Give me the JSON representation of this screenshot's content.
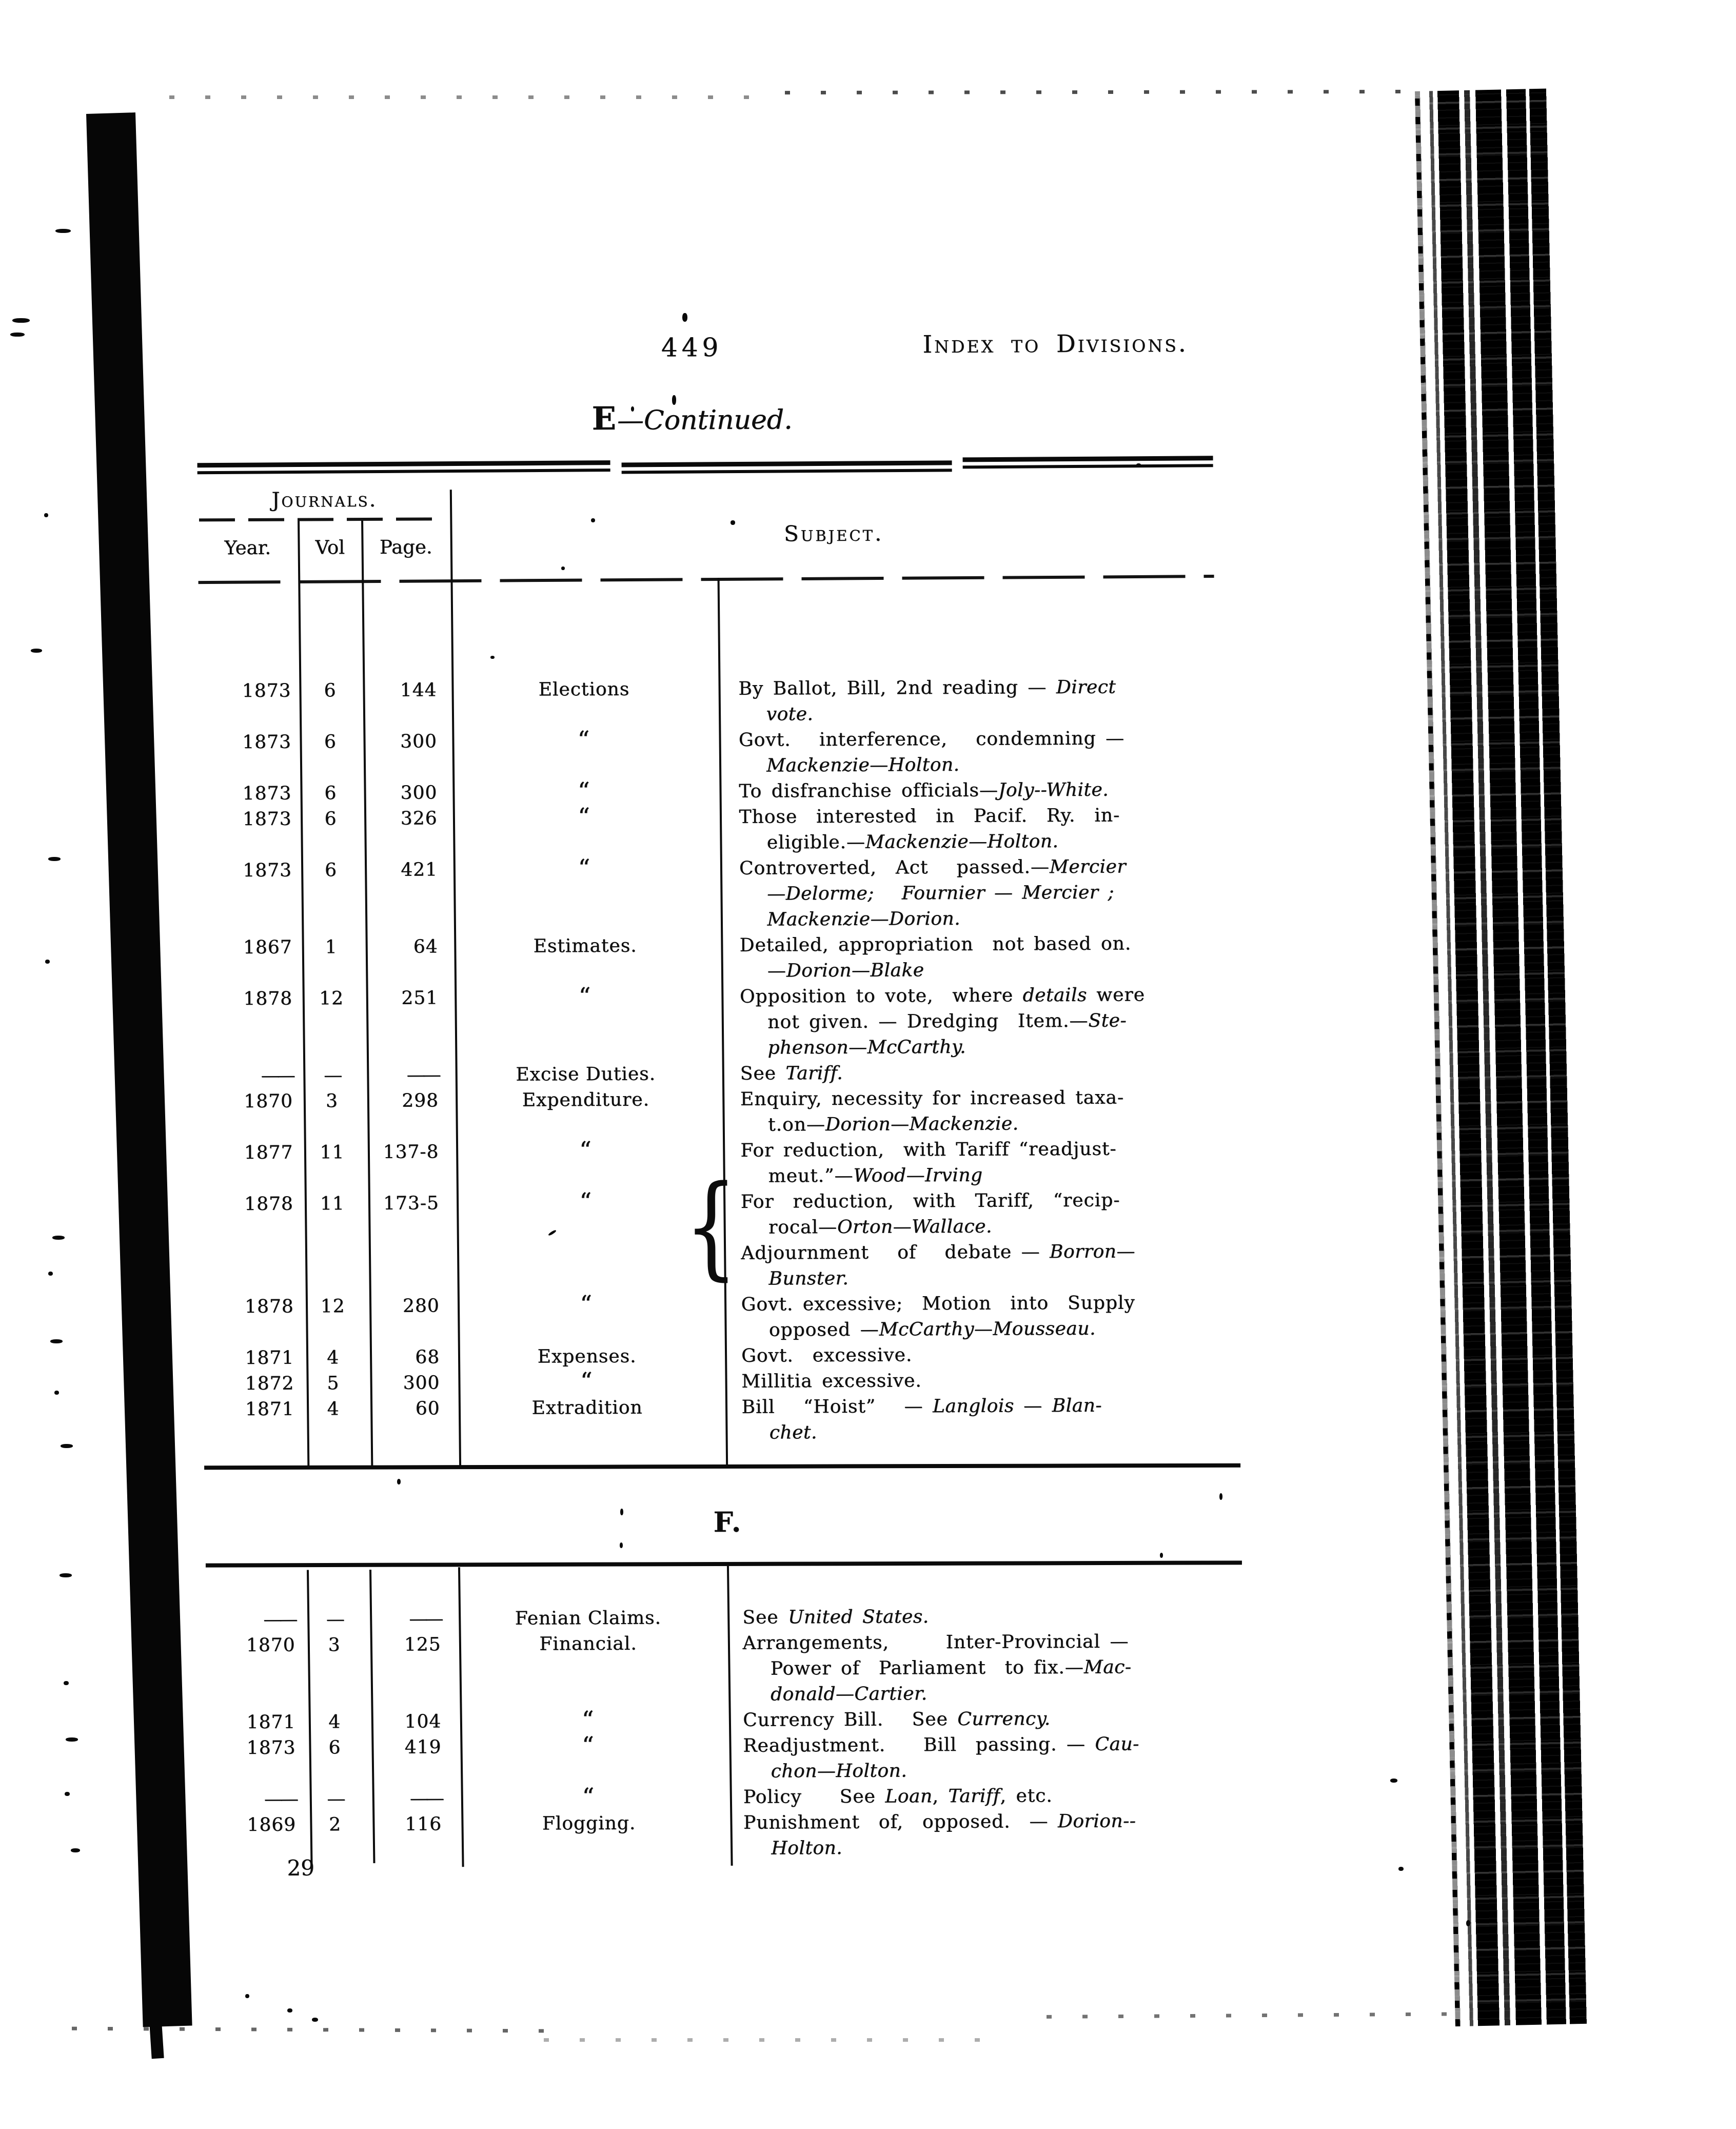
{
  "colors": {
    "ink": "#0d0d0d",
    "paper": "#ffffff"
  },
  "header": {
    "page_number": "449",
    "title": "Index to Divisions."
  },
  "section_e": {
    "letter": "E",
    "continued": "—Continued."
  },
  "table_header": {
    "group": "Journals.",
    "year": "Year.",
    "vol": "Vol",
    "page": "Page.",
    "subject": "Subject."
  },
  "section_f": {
    "heading": "F."
  },
  "footer": {
    "signature": "29"
  },
  "symbols": {
    "ditto": "“",
    "brace": "{",
    "no_entry_long": "——",
    "no_entry_short": "—"
  },
  "entries_e": [
    {
      "year": "1873",
      "vol": "6",
      "page": "144",
      "topic": "Elections",
      "lines": [
        {
          "ind": 0,
          "seg": [
            "By Ballot, Bill, 2nd reading — ",
            {
              "i": "Direct"
            }
          ]
        },
        {
          "ind": 1,
          "seg": [
            {
              "i": "vote."
            }
          ]
        }
      ]
    },
    {
      "year": "1873",
      "vol": "6",
      "page": "300",
      "topic": "“",
      "lines": [
        {
          "ind": 0,
          "seg": [
            "Govt.   interference,   condemning — "
          ]
        },
        {
          "ind": 1,
          "seg": [
            {
              "i": "Mackenzie—Holton."
            }
          ]
        }
      ]
    },
    {
      "year": "1873",
      "vol": "6",
      "page": "300",
      "topic": "“",
      "lines": [
        {
          "ind": 0,
          "seg": [
            "To disfranchise officials—",
            {
              "i": "Joly--White."
            }
          ]
        }
      ]
    },
    {
      "year": "1873",
      "vol": "6",
      "page": "326",
      "topic": "“",
      "lines": [
        {
          "ind": 0,
          "seg": [
            "Those  interested  in  Pacif.  Ry.  in-"
          ]
        },
        {
          "ind": 1,
          "seg": [
            "eligible.—",
            {
              "i": "Mackenzie—Holton."
            }
          ]
        }
      ]
    },
    {
      "year": "1873",
      "vol": "6",
      "page": "421",
      "topic": "“",
      "lines": [
        {
          "ind": 0,
          "seg": [
            "Controverted,  Act   passed.—",
            {
              "i": "Mercier"
            }
          ]
        },
        {
          "ind": 1,
          "seg": [
            {
              "i": "—Delorme;   Fournier — Mercier ;"
            }
          ]
        },
        {
          "ind": 1,
          "seg": [
            {
              "i": "Mackenzie—Dorion."
            }
          ]
        }
      ]
    },
    {
      "year": "1867",
      "vol": "1",
      "page": "64",
      "topic": "Estimates.",
      "lines": [
        {
          "ind": 0,
          "seg": [
            "Detailed, appropriation  not based on."
          ]
        },
        {
          "ind": 1,
          "seg": [
            "—",
            {
              "i": "Dorion—Blake"
            }
          ]
        }
      ]
    },
    {
      "year": "1878",
      "vol": "12",
      "page": "251",
      "topic": "“",
      "lines": [
        {
          "ind": 0,
          "seg": [
            "Opposition to vote,  where ",
            {
              "i": "details"
            },
            " were"
          ]
        },
        {
          "ind": 1,
          "seg": [
            "not given. — Dredging  Item.—",
            {
              "i": "Ste-"
            }
          ]
        },
        {
          "ind": 1,
          "seg": [
            {
              "i": "phenson—McCarthy."
            }
          ]
        }
      ]
    },
    {
      "year": "——",
      "vol": "—",
      "page": "——",
      "topic": "Excise Duties.",
      "lines": [
        {
          "ind": 0,
          "seg": [
            "See ",
            {
              "i": "Tariff."
            }
          ]
        }
      ]
    },
    {
      "year": "1870",
      "vol": "3",
      "page": "298",
      "topic": "Expenditure.",
      "lines": [
        {
          "ind": 0,
          "seg": [
            "Enquiry, necessity for increased taxa-"
          ]
        },
        {
          "ind": 1,
          "seg": [
            "t.on—",
            {
              "i": "Dorion—Mackenzie."
            }
          ]
        }
      ]
    },
    {
      "year": "1877",
      "vol": "11",
      "page": "137-8",
      "topic": "“",
      "lines": [
        {
          "ind": 0,
          "seg": [
            "For reduction,  with Tariff “readjust-"
          ]
        },
        {
          "ind": 1,
          "seg": [
            "meut.”—",
            {
              "i": "Wood—Irving"
            }
          ]
        }
      ]
    },
    {
      "year": "1878",
      "vol": "11",
      "page": "173-5",
      "topic": "“",
      "brace": true,
      "lines": [
        {
          "ind": 0,
          "seg": [
            "For  reduction,  with  Tariff,  “recip-"
          ]
        },
        {
          "ind": 1,
          "seg": [
            "rocal—",
            {
              "i": "Orton—Wallace."
            }
          ]
        },
        {
          "ind": 0,
          "seg": [
            "Adjournment   of   debate — ",
            {
              "i": "Borron—"
            }
          ]
        },
        {
          "ind": 1,
          "seg": [
            {
              "i": "Bunster."
            }
          ]
        }
      ]
    },
    {
      "year": "1878",
      "vol": "12",
      "page": "280",
      "topic": "“",
      "lines": [
        {
          "ind": 0,
          "seg": [
            "Govt. excessive;  Motion  into  Supply"
          ]
        },
        {
          "ind": 1,
          "seg": [
            "opposed —",
            {
              "i": "McCarthy—Mousseau."
            }
          ]
        }
      ]
    },
    {
      "year": "1871",
      "vol": "4",
      "page": "68",
      "topic": "Expenses.",
      "lines": [
        {
          "ind": 0,
          "seg": [
            "Govt.  excessive."
          ]
        }
      ]
    },
    {
      "year": "1872",
      "vol": "5",
      "page": "300",
      "topic": "“",
      "lines": [
        {
          "ind": 0,
          "seg": [
            "Millitia excessive."
          ]
        }
      ]
    },
    {
      "year": "1871",
      "vol": "4",
      "page": "60",
      "topic": "Extradition",
      "lines": [
        {
          "ind": 0,
          "seg": [
            "Bill   “Hoist”   — ",
            {
              "i": "Langlois"
            },
            " — ",
            {
              "i": "Blan-"
            }
          ]
        },
        {
          "ind": 1,
          "seg": [
            {
              "i": "chet."
            }
          ]
        }
      ]
    }
  ],
  "entries_f": [
    {
      "year": "——",
      "vol": "—",
      "page": "——",
      "topic": "Fenian Claims.",
      "lines": [
        {
          "ind": 0,
          "seg": [
            "See ",
            {
              "i": "United States."
            }
          ]
        }
      ]
    },
    {
      "year": "1870",
      "vol": "3",
      "page": "125",
      "topic": "Financial.",
      "lines": [
        {
          "ind": 0,
          "seg": [
            "Arrangements,      Inter-Provincial — "
          ]
        },
        {
          "ind": 1,
          "seg": [
            "Power of  Parliament  to fix.—",
            {
              "i": "Mac-"
            }
          ]
        },
        {
          "ind": 1,
          "seg": [
            {
              "i": "donald—Cartier."
            }
          ]
        }
      ]
    },
    {
      "year": "1871",
      "vol": "4",
      "page": "104",
      "topic": "“",
      "lines": [
        {
          "ind": 0,
          "seg": [
            "Currency Bill.   See ",
            {
              "i": "Currency."
            }
          ]
        }
      ]
    },
    {
      "year": "1873",
      "vol": "6",
      "page": "419",
      "topic": "“",
      "lines": [
        {
          "ind": 0,
          "seg": [
            "Readjustment.    Bill  passing. — ",
            {
              "i": "Cau-"
            }
          ]
        },
        {
          "ind": 1,
          "seg": [
            {
              "i": "chon—Holton."
            }
          ]
        }
      ]
    },
    {
      "year": "——",
      "vol": "—",
      "page": "——",
      "topic": "“",
      "lines": [
        {
          "ind": 0,
          "seg": [
            "Policy    See ",
            {
              "i": "Loan"
            },
            ", ",
            {
              "i": "Tariff"
            },
            ", etc."
          ]
        }
      ]
    },
    {
      "year": "1869",
      "vol": "2",
      "page": "116",
      "topic": "Flogging.",
      "lines": [
        {
          "ind": 0,
          "seg": [
            "Punishment  of,  opposed.  — ",
            {
              "i": "Dorion--"
            }
          ]
        },
        {
          "ind": 1,
          "seg": [
            {
              "i": "Holton."
            }
          ]
        }
      ]
    }
  ]
}
